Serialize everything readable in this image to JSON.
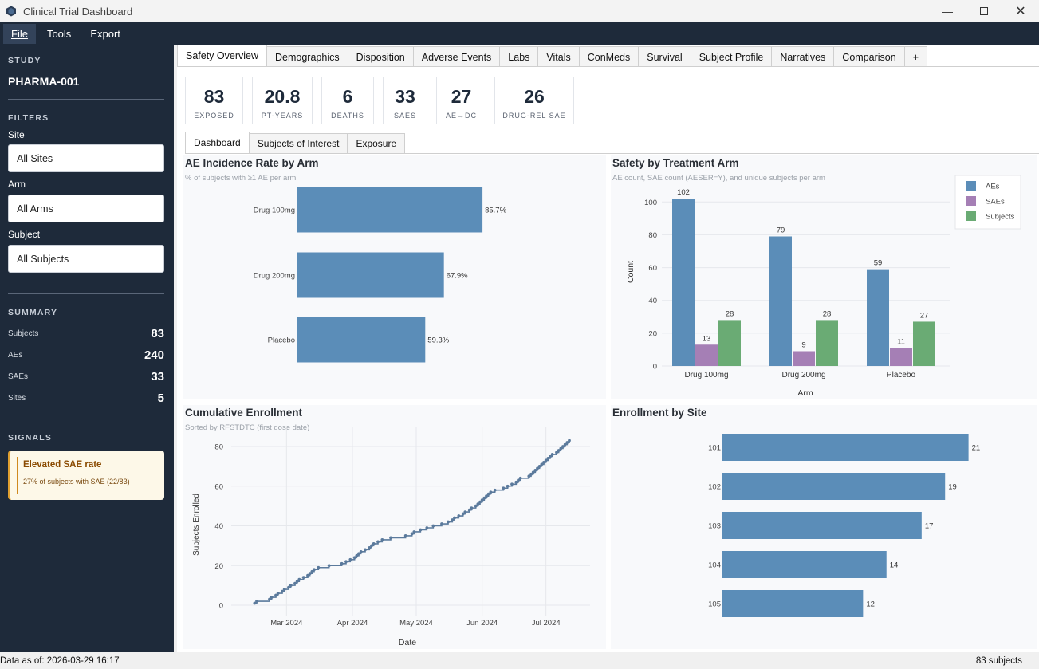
{
  "window": {
    "title": "Clinical Trial Dashboard"
  },
  "menu": [
    "File",
    "Tools",
    "Export"
  ],
  "sidebar": {
    "study_heading": "STUDY",
    "study_id": "PHARMA-001",
    "filters_heading": "FILTERS",
    "site_label": "Site",
    "site_value": "All Sites",
    "arm_label": "Arm",
    "arm_value": "All Arms",
    "subject_label": "Subject",
    "subject_value": "All Subjects",
    "summary_heading": "SUMMARY",
    "summary": [
      {
        "label": "Subjects",
        "value": "83"
      },
      {
        "label": "AEs",
        "value": "240"
      },
      {
        "label": "SAEs",
        "value": "33"
      },
      {
        "label": "Sites",
        "value": "5"
      }
    ],
    "signals_heading": "SIGNALS",
    "signal": {
      "title": "Elevated SAE rate",
      "text": "27% of subjects with SAE (22/83)"
    }
  },
  "tabs": [
    "Safety Overview",
    "Demographics",
    "Disposition",
    "Adverse Events",
    "Labs",
    "Vitals",
    "ConMeds",
    "Survival",
    "Subject Profile",
    "Narratives",
    "Comparison",
    "+"
  ],
  "kpis": [
    {
      "value": "83",
      "label": "EXPOSED"
    },
    {
      "value": "20.8",
      "label": "PT-YEARS"
    },
    {
      "value": "6",
      "label": "DEATHS"
    },
    {
      "value": "33",
      "label": "SAES"
    },
    {
      "value": "27",
      "label": "AE→DC"
    },
    {
      "value": "26",
      "label": "DRUG-REL SAE"
    }
  ],
  "subtabs": [
    "Dashboard",
    "Subjects of Interest",
    "Exposure"
  ],
  "colors": {
    "blue": "#5b8db8",
    "purple": "#a57fb5",
    "green": "#6aab74",
    "navy": "#1e2a3a"
  },
  "chart_data": [
    {
      "type": "bar",
      "orientation": "horizontal",
      "title": "AE Incidence Rate by Arm",
      "subtitle": "% of subjects with ≥1 AE per arm",
      "categories": [
        "Drug 100mg",
        "Drug 200mg",
        "Placebo"
      ],
      "values": [
        85.7,
        67.9,
        59.3
      ],
      "value_labels": [
        "85.7%",
        "67.9%",
        "59.3%"
      ],
      "xlim": [
        0,
        100
      ]
    },
    {
      "type": "bar",
      "title": "Safety by Treatment Arm",
      "subtitle": "AE count, SAE count (AESER=Y), and unique subjects per arm",
      "xlabel": "Arm",
      "ylabel": "Count",
      "categories": [
        "Drug 100mg",
        "Drug 200mg",
        "Placebo"
      ],
      "series": [
        {
          "name": "AEs",
          "values": [
            102,
            79,
            59
          ]
        },
        {
          "name": "SAEs",
          "values": [
            13,
            9,
            11
          ]
        },
        {
          "name": "Subjects",
          "values": [
            28,
            28,
            27
          ]
        }
      ],
      "ylim": [
        0,
        105
      ],
      "yticks": [
        "0",
        "20",
        "40",
        "60",
        "80",
        "100"
      ],
      "legend": "top-right",
      "grid": true
    },
    {
      "type": "line",
      "title": "Cumulative Enrollment",
      "subtitle": "Sorted by RFSTDTC (first dose date)",
      "xlabel": "Date",
      "ylabel": "Subjects Enrolled",
      "xticks": [
        "Mar 2024",
        "Apr 2024",
        "May 2024",
        "Jun 2024",
        "Jul 2024"
      ],
      "yticks": [
        "0",
        "20",
        "40",
        "60",
        "80"
      ],
      "xlim": [
        "2024-02-10",
        "2024-07-12"
      ],
      "ylim": [
        -3,
        89
      ],
      "points": [
        [
          "2024-02-15",
          1
        ],
        [
          "2024-02-16",
          2
        ],
        [
          "2024-02-22",
          3
        ],
        [
          "2024-02-23",
          4
        ],
        [
          "2024-02-25",
          5
        ],
        [
          "2024-02-26",
          6
        ],
        [
          "2024-02-28",
          7
        ],
        [
          "2024-02-29",
          8
        ],
        [
          "2024-03-02",
          9
        ],
        [
          "2024-03-03",
          10
        ],
        [
          "2024-03-05",
          11
        ],
        [
          "2024-03-06",
          12
        ],
        [
          "2024-03-07",
          13
        ],
        [
          "2024-03-09",
          14
        ],
        [
          "2024-03-11",
          15
        ],
        [
          "2024-03-12",
          16
        ],
        [
          "2024-03-13",
          17
        ],
        [
          "2024-03-14",
          18
        ],
        [
          "2024-03-16",
          19
        ],
        [
          "2024-03-21",
          20
        ],
        [
          "2024-03-27",
          21
        ],
        [
          "2024-03-29",
          22
        ],
        [
          "2024-03-31",
          23
        ],
        [
          "2024-04-02",
          24
        ],
        [
          "2024-04-03",
          25
        ],
        [
          "2024-04-04",
          26
        ],
        [
          "2024-04-05",
          27
        ],
        [
          "2024-04-07",
          28
        ],
        [
          "2024-04-09",
          29
        ],
        [
          "2024-04-10",
          30
        ],
        [
          "2024-04-11",
          31
        ],
        [
          "2024-04-13",
          32
        ],
        [
          "2024-04-15",
          33
        ],
        [
          "2024-04-19",
          34
        ],
        [
          "2024-04-26",
          35
        ],
        [
          "2024-04-29",
          36
        ],
        [
          "2024-04-30",
          37
        ],
        [
          "2024-05-03",
          38
        ],
        [
          "2024-05-06",
          39
        ],
        [
          "2024-05-09",
          40
        ],
        [
          "2024-05-13",
          41
        ],
        [
          "2024-05-16",
          42
        ],
        [
          "2024-05-18",
          43
        ],
        [
          "2024-05-19",
          44
        ],
        [
          "2024-05-21",
          45
        ],
        [
          "2024-05-23",
          46
        ],
        [
          "2024-05-24",
          47
        ],
        [
          "2024-05-26",
          48
        ],
        [
          "2024-05-27",
          49
        ],
        [
          "2024-05-29",
          50
        ],
        [
          "2024-05-30",
          51
        ],
        [
          "2024-05-31",
          52
        ],
        [
          "2024-06-01",
          53
        ],
        [
          "2024-06-02",
          54
        ],
        [
          "2024-06-03",
          55
        ],
        [
          "2024-06-04",
          56
        ],
        [
          "2024-06-05",
          57
        ],
        [
          "2024-06-07",
          58
        ],
        [
          "2024-06-11",
          59
        ],
        [
          "2024-06-13",
          60
        ],
        [
          "2024-06-15",
          61
        ],
        [
          "2024-06-17",
          62
        ],
        [
          "2024-06-18",
          63
        ],
        [
          "2024-06-19",
          64
        ],
        [
          "2024-06-23",
          65
        ],
        [
          "2024-06-24",
          66
        ],
        [
          "2024-06-25",
          67
        ],
        [
          "2024-06-26",
          68
        ],
        [
          "2024-06-27",
          69
        ],
        [
          "2024-06-28",
          70
        ],
        [
          "2024-06-29",
          71
        ],
        [
          "2024-06-30",
          72
        ],
        [
          "2024-07-01",
          73
        ],
        [
          "2024-07-02",
          74
        ],
        [
          "2024-07-03",
          75
        ],
        [
          "2024-07-04",
          76
        ],
        [
          "2024-07-06",
          77
        ],
        [
          "2024-07-07",
          78
        ],
        [
          "2024-07-08",
          79
        ],
        [
          "2024-07-09",
          80
        ],
        [
          "2024-07-10",
          81
        ],
        [
          "2024-07-11",
          82
        ],
        [
          "2024-07-12",
          83
        ]
      ]
    },
    {
      "type": "bar",
      "orientation": "horizontal",
      "title": "Enrollment by Site",
      "categories": [
        "101",
        "102",
        "103",
        "104",
        "105"
      ],
      "values": [
        21,
        19,
        17,
        14,
        12
      ],
      "xlim": [
        0,
        23
      ]
    }
  ],
  "status": {
    "left": "Data as of: 2026-03-29 16:17",
    "right": "83 subjects"
  }
}
